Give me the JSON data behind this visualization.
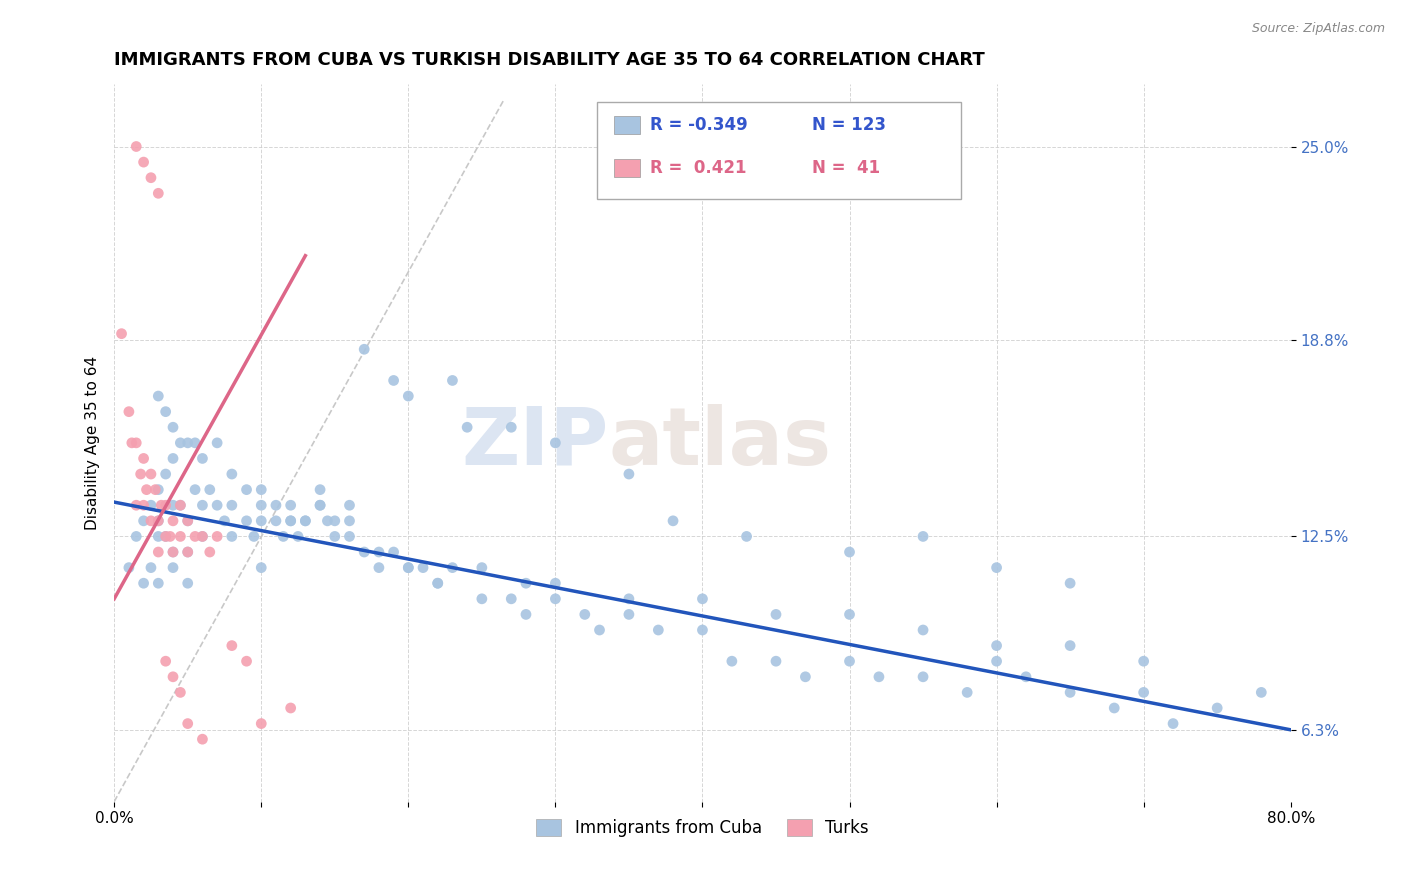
{
  "title": "IMMIGRANTS FROM CUBA VS TURKISH DISABILITY AGE 35 TO 64 CORRELATION CHART",
  "source": "Source: ZipAtlas.com",
  "ylabel": "Disability Age 35 to 64",
  "xlim": [
    0.0,
    0.8
  ],
  "ylim": [
    0.04,
    0.27
  ],
  "xticks": [
    0.0,
    0.1,
    0.2,
    0.3,
    0.4,
    0.5,
    0.6,
    0.7,
    0.8
  ],
  "ytick_positions": [
    0.063,
    0.125,
    0.188,
    0.25
  ],
  "ytick_labels": [
    "6.3%",
    "12.5%",
    "18.8%",
    "25.0%"
  ],
  "blue_scatter_x": [
    0.01,
    0.015,
    0.02,
    0.02,
    0.025,
    0.025,
    0.03,
    0.03,
    0.03,
    0.035,
    0.035,
    0.04,
    0.04,
    0.04,
    0.045,
    0.045,
    0.05,
    0.05,
    0.055,
    0.06,
    0.065,
    0.07,
    0.075,
    0.08,
    0.09,
    0.095,
    0.1,
    0.1,
    0.11,
    0.115,
    0.12,
    0.125,
    0.13,
    0.14,
    0.145,
    0.15,
    0.16,
    0.17,
    0.18,
    0.19,
    0.2,
    0.21,
    0.22,
    0.23,
    0.25,
    0.27,
    0.28,
    0.3,
    0.32,
    0.33,
    0.35,
    0.37,
    0.4,
    0.42,
    0.45,
    0.47,
    0.5,
    0.52,
    0.55,
    0.58,
    0.6,
    0.62,
    0.65,
    0.68,
    0.7,
    0.72,
    0.75,
    0.78,
    0.03,
    0.035,
    0.04,
    0.05,
    0.055,
    0.06,
    0.07,
    0.08,
    0.09,
    0.1,
    0.11,
    0.12,
    0.13,
    0.14,
    0.15,
    0.16,
    0.18,
    0.2,
    0.22,
    0.25,
    0.28,
    0.3,
    0.35,
    0.4,
    0.45,
    0.5,
    0.55,
    0.6,
    0.65,
    0.7,
    0.55,
    0.6,
    0.65,
    0.38,
    0.43,
    0.5,
    0.3,
    0.35,
    0.23,
    0.27,
    0.2,
    0.24,
    0.17,
    0.19,
    0.14,
    0.16,
    0.12,
    0.1,
    0.08,
    0.06,
    0.05,
    0.04,
    0.03
  ],
  "blue_scatter_y": [
    0.115,
    0.125,
    0.13,
    0.11,
    0.135,
    0.115,
    0.14,
    0.125,
    0.11,
    0.145,
    0.125,
    0.15,
    0.135,
    0.12,
    0.155,
    0.135,
    0.13,
    0.11,
    0.14,
    0.135,
    0.14,
    0.135,
    0.13,
    0.135,
    0.13,
    0.125,
    0.135,
    0.115,
    0.13,
    0.125,
    0.13,
    0.125,
    0.13,
    0.135,
    0.13,
    0.125,
    0.125,
    0.12,
    0.115,
    0.12,
    0.115,
    0.115,
    0.11,
    0.115,
    0.105,
    0.105,
    0.1,
    0.105,
    0.1,
    0.095,
    0.1,
    0.095,
    0.095,
    0.085,
    0.085,
    0.08,
    0.085,
    0.08,
    0.08,
    0.075,
    0.085,
    0.08,
    0.075,
    0.07,
    0.075,
    0.065,
    0.07,
    0.075,
    0.17,
    0.165,
    0.16,
    0.155,
    0.155,
    0.15,
    0.155,
    0.145,
    0.14,
    0.14,
    0.135,
    0.135,
    0.13,
    0.135,
    0.13,
    0.13,
    0.12,
    0.115,
    0.11,
    0.115,
    0.11,
    0.11,
    0.105,
    0.105,
    0.1,
    0.1,
    0.095,
    0.09,
    0.09,
    0.085,
    0.125,
    0.115,
    0.11,
    0.13,
    0.125,
    0.12,
    0.155,
    0.145,
    0.175,
    0.16,
    0.17,
    0.16,
    0.185,
    0.175,
    0.14,
    0.135,
    0.13,
    0.13,
    0.125,
    0.125,
    0.12,
    0.115,
    0.13
  ],
  "pink_scatter_x": [
    0.005,
    0.01,
    0.012,
    0.015,
    0.015,
    0.018,
    0.02,
    0.02,
    0.022,
    0.025,
    0.025,
    0.028,
    0.03,
    0.03,
    0.032,
    0.035,
    0.035,
    0.038,
    0.04,
    0.04,
    0.045,
    0.045,
    0.05,
    0.05,
    0.055,
    0.06,
    0.065,
    0.07,
    0.08,
    0.09,
    0.1,
    0.12,
    0.015,
    0.02,
    0.025,
    0.03,
    0.035,
    0.04,
    0.045,
    0.05,
    0.06
  ],
  "pink_scatter_y": [
    0.19,
    0.165,
    0.155,
    0.155,
    0.135,
    0.145,
    0.15,
    0.135,
    0.14,
    0.145,
    0.13,
    0.14,
    0.13,
    0.12,
    0.135,
    0.135,
    0.125,
    0.125,
    0.13,
    0.12,
    0.135,
    0.125,
    0.13,
    0.12,
    0.125,
    0.125,
    0.12,
    0.125,
    0.09,
    0.085,
    0.065,
    0.07,
    0.25,
    0.245,
    0.24,
    0.235,
    0.085,
    0.08,
    0.075,
    0.065,
    0.06
  ],
  "blue_line_x": [
    0.0,
    0.8
  ],
  "blue_line_y": [
    0.136,
    0.063
  ],
  "pink_line_x": [
    0.0,
    0.13
  ],
  "pink_line_y": [
    0.105,
    0.215
  ],
  "diag_line_x": [
    0.0,
    0.265
  ],
  "diag_line_y": [
    0.04,
    0.265
  ],
  "watermark_zip": "ZIP",
  "watermark_atlas": "atlas",
  "blue_color": "#a8c4e0",
  "pink_color": "#f4a0b0",
  "blue_line_color": "#2255bb",
  "pink_line_color": "#dd6688",
  "diag_line_color": "#c8c8c8",
  "background_color": "#ffffff",
  "title_fontsize": 13,
  "axis_label_fontsize": 11,
  "tick_fontsize": 11
}
